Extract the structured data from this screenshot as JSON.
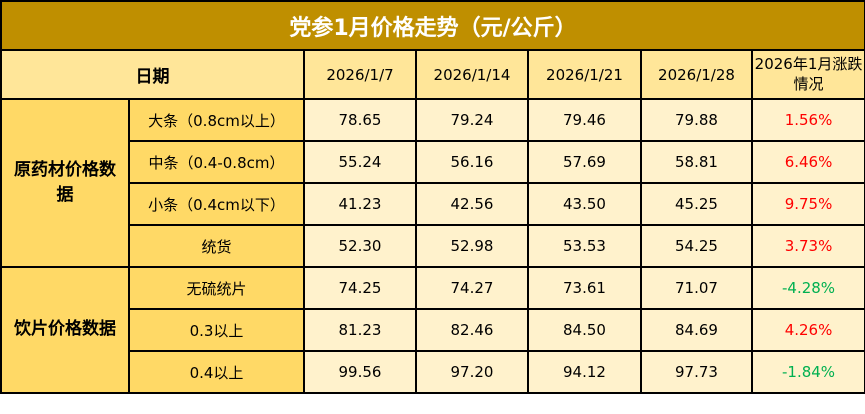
{
  "title": "党参1月价格走势（元/公斤）",
  "header": {
    "date_label": "日期",
    "dates": [
      "2026/1/7",
      "2026/1/14",
      "2026/1/21",
      "2026/1/28"
    ],
    "change_label": "2026年1月涨跌情况"
  },
  "groups": [
    {
      "label": "原药材价格数据",
      "rows": [
        {
          "name": "大条（0.8cm以上）",
          "values": [
            "78.65",
            "79.24",
            "79.46",
            "79.88"
          ],
          "change": "1.56%",
          "direction": "up"
        },
        {
          "name": "中条（0.4-0.8cm）",
          "values": [
            "55.24",
            "56.16",
            "57.69",
            "58.81"
          ],
          "change": "6.46%",
          "direction": "up"
        },
        {
          "name": "小条（0.4cm以下）",
          "values": [
            "41.23",
            "42.56",
            "43.50",
            "45.25"
          ],
          "change": "9.75%",
          "direction": "up"
        },
        {
          "name": "统货",
          "values": [
            "52.30",
            "52.98",
            "53.53",
            "54.25"
          ],
          "change": "3.73%",
          "direction": "up"
        }
      ]
    },
    {
      "label": "饮片价格数据",
      "rows": [
        {
          "name": "无硫统片",
          "values": [
            "74.25",
            "74.27",
            "73.61",
            "71.07"
          ],
          "change": "-4.28%",
          "direction": "down"
        },
        {
          "name": "0.3以上",
          "values": [
            "81.23",
            "82.46",
            "84.50",
            "84.69"
          ],
          "change": "4.26%",
          "direction": "up"
        },
        {
          "name": "0.4以上",
          "values": [
            "99.56",
            "97.20",
            "94.12",
            "97.73"
          ],
          "change": "-1.84%",
          "direction": "down"
        }
      ]
    }
  ],
  "colors": {
    "title_bg": "#bf8f00",
    "header_bg": "#ffe699",
    "cell_bg": "#fff2cc",
    "up": "#ff0000",
    "down": "#00b050"
  }
}
